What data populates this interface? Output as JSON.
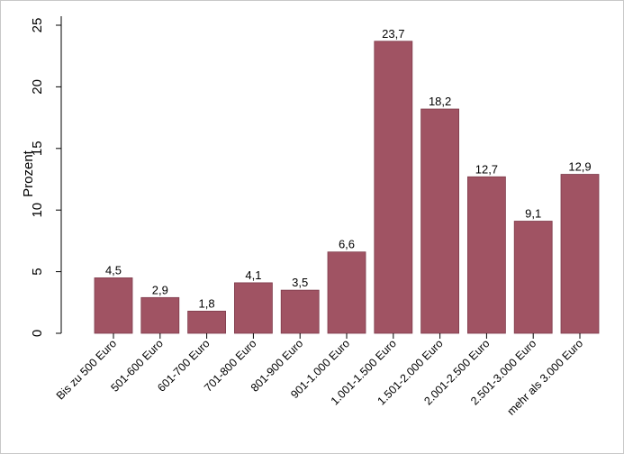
{
  "chart_data": {
    "type": "bar",
    "ylabel": "Prozent",
    "xlabel": "",
    "title": "",
    "ylim": [
      0,
      25
    ],
    "yticks": [
      0,
      5,
      10,
      15,
      20,
      25
    ],
    "grid": false,
    "bar_color": "#a05363",
    "categories": [
      "Bis zu 500 Euro",
      "501-600 Euro",
      "601-700 Euro",
      "701-800 Euro",
      "801-900 Euro",
      "901-1.000 Euro",
      "1.001-1.500 Euro",
      "1.501-2.000 Euro",
      "2.001-2.500 Euro",
      "2.501-3.000 Euro",
      "mehr als 3.000 Euro"
    ],
    "values": [
      4.5,
      2.9,
      1.8,
      4.1,
      3.5,
      6.6,
      23.7,
      18.2,
      12.7,
      9.1,
      12.9
    ],
    "value_labels": [
      "4,5",
      "2,9",
      "1,8",
      "4,1",
      "3,5",
      "6,6",
      "23,7",
      "18,2",
      "12,7",
      "9,1",
      "12,9"
    ]
  }
}
